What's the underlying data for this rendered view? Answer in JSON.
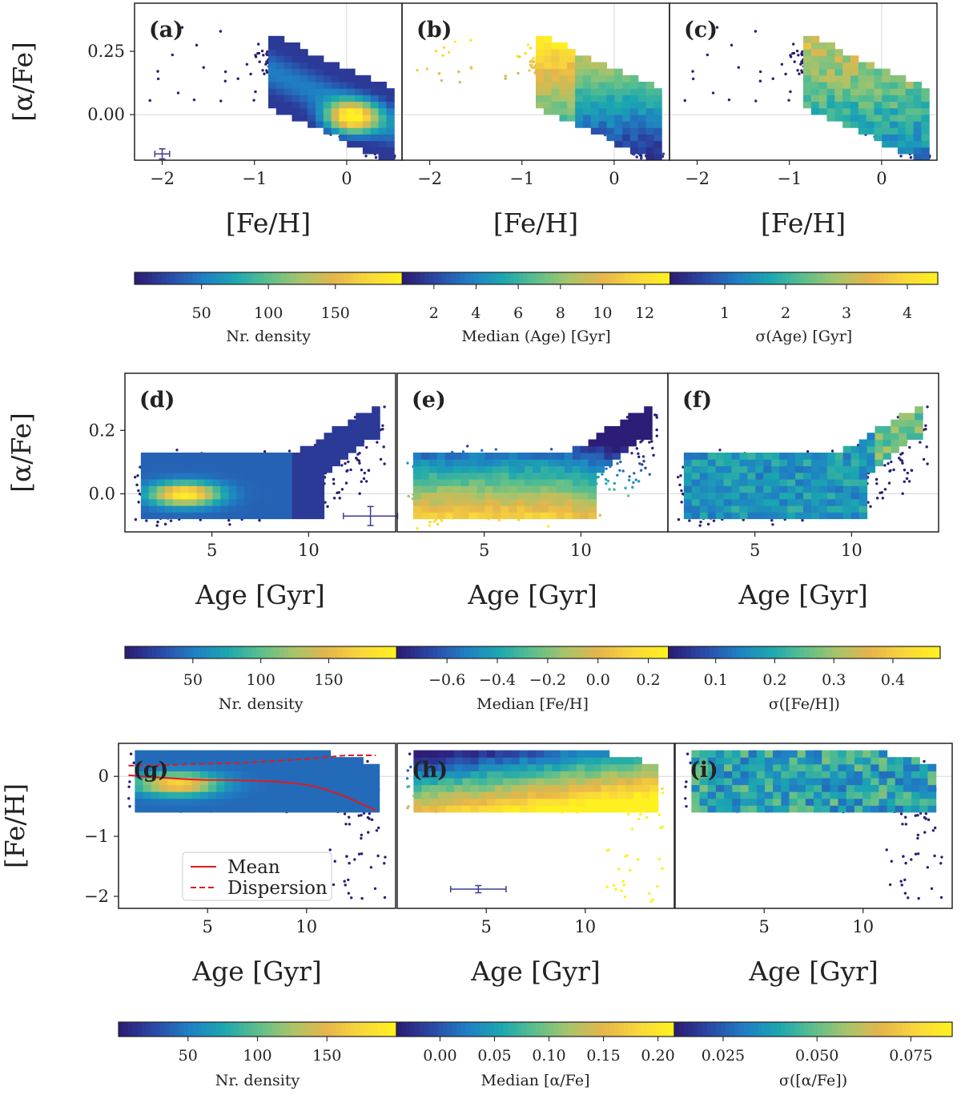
{
  "colors": {
    "viridis_stops": [
      "#2c1d76",
      "#2a4aa8",
      "#1f7fc4",
      "#1ba7b0",
      "#5cbf8c",
      "#a8c46a",
      "#e6b54a",
      "#f9d73a",
      "#fff020"
    ],
    "mean_line": "#e31a1c",
    "grid": "#d8d8d8",
    "error_bar": "#3b3b8f",
    "outline": "#2c1d76"
  },
  "chart_data": [
    {
      "type": "heatmap",
      "panel": "(a)",
      "xlabel": "[Fe/H]",
      "ylabel": "[α/Fe]",
      "xlim": [
        -2.3,
        0.6
      ],
      "ylim": [
        -0.18,
        0.44
      ],
      "xticks": [
        -2,
        -1,
        0
      ],
      "xticklabels": [
        "−2",
        "−1",
        "0"
      ],
      "yticks": [
        0.0,
        0.25
      ],
      "yticklabels": [
        "0.00",
        "0.25"
      ],
      "grid_refs": {
        "x": 0,
        "y": 0
      },
      "quantity": "Nr. density",
      "distribution": {
        "x0": -0.45,
        "slope": -0.3,
        "y_at_x0": 0.13,
        "width": 0.07,
        "x_range": [
          -0.85,
          0.5
        ],
        "peak_x": 0.05,
        "peak_y": -0.01
      },
      "error_bar": {
        "x": -2.0,
        "y": -0.155,
        "xerr": 0.08,
        "yerr": 0.02
      }
    },
    {
      "type": "heatmap",
      "panel": "(b)",
      "xlabel": "[Fe/H]",
      "ylabel": "",
      "xlim": [
        -2.3,
        0.6
      ],
      "ylim": [
        -0.18,
        0.44
      ],
      "xticks": [
        -2,
        -1,
        0
      ],
      "xticklabels": [
        "−2",
        "−1",
        "0"
      ],
      "yticks": [],
      "yticklabels": [],
      "grid_refs": {
        "x": 0,
        "y": 0
      },
      "quantity": "Median (Age) [Gyr]",
      "distribution": {
        "x0": -0.45,
        "slope": -0.3,
        "y_at_x0": 0.13,
        "width": 0.07,
        "x_range": [
          -0.85,
          0.5
        ],
        "value_trend": "age increases with [α/Fe]"
      }
    },
    {
      "type": "heatmap",
      "panel": "(c)",
      "xlabel": "[Fe/H]",
      "ylabel": "",
      "xlim": [
        -2.3,
        0.6
      ],
      "ylim": [
        -0.18,
        0.44
      ],
      "xticks": [
        -2,
        -1,
        0
      ],
      "xticklabels": [
        "−2",
        "−1",
        "0"
      ],
      "yticks": [],
      "yticklabels": [],
      "grid_refs": {
        "x": 0,
        "y": 0
      },
      "quantity": "σ(Age) [Gyr]",
      "distribution": {
        "x0": -0.45,
        "slope": -0.3,
        "y_at_x0": 0.13,
        "width": 0.07,
        "x_range": [
          -0.85,
          0.5
        ],
        "value_trend": "dispersion 2–3 Gyr, highest at high [α/Fe]"
      }
    },
    {
      "type": "colorbar",
      "label": "Nr. density",
      "range": [
        0,
        200
      ],
      "ticks": [
        50,
        100,
        150
      ],
      "ticklabels": [
        "50",
        "100",
        "150"
      ]
    },
    {
      "type": "colorbar",
      "label": "Median (Age) [Gyr]",
      "range": [
        0.5,
        13.2
      ],
      "ticks": [
        2,
        4,
        6,
        8,
        10,
        12
      ],
      "ticklabels": [
        "2",
        "4",
        "6",
        "8",
        "10",
        "12"
      ]
    },
    {
      "type": "colorbar",
      "label": "σ(Age) [Gyr]",
      "range": [
        0.1,
        4.5
      ],
      "ticks": [
        1,
        2,
        3,
        4
      ],
      "ticklabels": [
        "1",
        "2",
        "3",
        "4"
      ]
    },
    {
      "type": "heatmap",
      "panel": "(d)",
      "xlabel": "Age [Gyr]",
      "ylabel": "[α/Fe]",
      "xlim": [
        0.5,
        14.5
      ],
      "ylim": [
        -0.12,
        0.38
      ],
      "xticks": [
        5,
        10
      ],
      "xticklabels": [
        "5",
        "10"
      ],
      "yticks": [
        0.0,
        0.2
      ],
      "yticklabels": [
        "0.0",
        "0.2"
      ],
      "grid_refs": {
        "y": 0
      },
      "quantity": "Nr. density",
      "distribution": {
        "x_range": [
          1.5,
          10.5
        ],
        "y_range": [
          -0.05,
          0.1
        ],
        "tail": "rises to 0.28 at 13.5 Gyr",
        "peak_x": 3.5,
        "peak_y": 0.0
      },
      "error_bar": {
        "x": 13.2,
        "y": -0.07,
        "xerr": 1.4,
        "yerr": 0.03
      }
    },
    {
      "type": "heatmap",
      "panel": "(e)",
      "xlabel": "Age [Gyr]",
      "ylabel": "",
      "xlim": [
        0.5,
        14.5
      ],
      "ylim": [
        -0.12,
        0.38
      ],
      "xticks": [
        5,
        10
      ],
      "xticklabels": [
        "5",
        "10"
      ],
      "yticks": [],
      "yticklabels": [],
      "grid_refs": {
        "y": 0
      },
      "quantity": "Median [Fe/H]",
      "distribution": {
        "x_range": [
          1.5,
          10.5
        ],
        "y_range": [
          -0.05,
          0.1
        ],
        "value_trend": "metal-rich at low [α/Fe], metal-poor at high [α/Fe]"
      }
    },
    {
      "type": "heatmap",
      "panel": "(f)",
      "xlabel": "Age [Gyr]",
      "ylabel": "",
      "xlim": [
        0.5,
        14.5
      ],
      "ylim": [
        -0.12,
        0.38
      ],
      "xticks": [
        5,
        10
      ],
      "xticklabels": [
        "5",
        "10"
      ],
      "yticks": [],
      "yticklabels": [],
      "grid_refs": {
        "y": 0
      },
      "quantity": "σ([Fe/H])",
      "distribution": {
        "x_range": [
          1.5,
          10.5
        ],
        "y_range": [
          -0.05,
          0.1
        ],
        "value_trend": "dispersion ~0.15–0.25 dex"
      }
    },
    {
      "type": "colorbar",
      "label": "Nr. density",
      "range": [
        0,
        200
      ],
      "ticks": [
        50,
        100,
        150
      ],
      "ticklabels": [
        "50",
        "100",
        "150"
      ]
    },
    {
      "type": "colorbar",
      "label": "Median [Fe/H]",
      "range": [
        -0.8,
        0.28
      ],
      "ticks": [
        -0.6,
        -0.4,
        -0.2,
        0.0,
        0.2
      ],
      "ticklabels": [
        "−0.6",
        "−0.4",
        "−0.2",
        "0.0",
        "0.2"
      ]
    },
    {
      "type": "colorbar",
      "label": "σ([Fe/H])",
      "range": [
        0.02,
        0.48
      ],
      "ticks": [
        0.1,
        0.2,
        0.3,
        0.4
      ],
      "ticklabels": [
        "0.1",
        "0.2",
        "0.3",
        "0.4"
      ]
    },
    {
      "type": "heatmap",
      "panel": "(g)",
      "xlabel": "Age [Gyr]",
      "ylabel": "[Fe/H]",
      "xlim": [
        0.5,
        14.5
      ],
      "ylim": [
        -2.2,
        0.55
      ],
      "xticks": [
        5,
        10
      ],
      "xticklabels": [
        "5",
        "10"
      ],
      "yticks": [
        -2,
        -1,
        0
      ],
      "yticklabels": [
        "−2",
        "−1",
        "0"
      ],
      "grid_refs": {
        "y": 0
      },
      "quantity": "Nr. density",
      "distribution": {
        "x_range": [
          1.5,
          13.5
        ],
        "y_range": [
          -0.5,
          0.4
        ],
        "peak_x": 3.5,
        "peak_y": -0.1
      },
      "series": [
        {
          "name": "Mean",
          "style": "solid",
          "x": [
            1,
            2,
            3,
            4,
            5,
            6,
            7,
            8,
            9,
            10,
            11,
            12,
            13.5
          ],
          "y": [
            0.02,
            -0.01,
            -0.03,
            -0.05,
            -0.06,
            -0.06,
            -0.07,
            -0.08,
            -0.1,
            -0.14,
            -0.22,
            -0.34,
            -0.57
          ]
        },
        {
          "name": "Dispersion",
          "style": "dashed",
          "x": [
            1,
            2,
            3,
            4,
            5,
            6,
            7,
            8,
            9,
            10,
            11,
            12,
            13.5
          ],
          "y": [
            0.18,
            0.18,
            0.19,
            0.2,
            0.21,
            0.22,
            0.23,
            0.25,
            0.27,
            0.29,
            0.32,
            0.35,
            0.35
          ]
        }
      ],
      "legend": {
        "placement": "lower-left",
        "entries": [
          "Mean",
          "Dispersion"
        ]
      }
    },
    {
      "type": "heatmap",
      "panel": "(h)",
      "xlabel": "Age [Gyr]",
      "ylabel": "",
      "xlim": [
        0.5,
        14.5
      ],
      "ylim": [
        -2.2,
        0.55
      ],
      "xticks": [
        5,
        10
      ],
      "xticklabels": [
        "5",
        "10"
      ],
      "yticks": [],
      "yticklabels": [],
      "grid_refs": {
        "y": 0
      },
      "quantity": "Median [α/Fe]",
      "distribution": {
        "x_range": [
          1.5,
          13.5
        ],
        "y_range": [
          -0.5,
          0.4
        ],
        "value_trend": "[α/Fe] increases with age and decreasing [Fe/H]"
      },
      "error_bar": {
        "x": 4.6,
        "y": -1.88,
        "xerr": 1.4,
        "yerr": 0.06
      }
    },
    {
      "type": "heatmap",
      "panel": "(i)",
      "xlabel": "Age [Gyr]",
      "ylabel": "",
      "xlim": [
        0.5,
        14.5
      ],
      "ylim": [
        -2.2,
        0.55
      ],
      "xticks": [
        5,
        10
      ],
      "xticklabels": [
        "5",
        "10"
      ],
      "yticks": [],
      "yticklabels": [],
      "grid_refs": {
        "y": 0
      },
      "quantity": "σ([α/Fe])",
      "distribution": {
        "x_range": [
          1.5,
          13.5
        ],
        "y_range": [
          -0.5,
          0.4
        ],
        "value_trend": "dispersion ~0.03–0.05 dex"
      }
    },
    {
      "type": "colorbar",
      "label": "Nr. density",
      "range": [
        0,
        200
      ],
      "ticks": [
        50,
        100,
        150
      ],
      "ticklabels": [
        "50",
        "100",
        "150"
      ]
    },
    {
      "type": "colorbar",
      "label": "Median [α/Fe]",
      "range": [
        -0.04,
        0.215
      ],
      "ticks": [
        0.0,
        0.05,
        0.1,
        0.15,
        0.2
      ],
      "ticklabels": [
        "0.00",
        "0.05",
        "0.10",
        "0.15",
        "0.20"
      ]
    },
    {
      "type": "colorbar",
      "label": "σ([α/Fe])",
      "range": [
        0.012,
        0.086
      ],
      "ticks": [
        0.025,
        0.05,
        0.075
      ],
      "ticklabels": [
        "0.025",
        "0.050",
        "0.075"
      ]
    }
  ]
}
